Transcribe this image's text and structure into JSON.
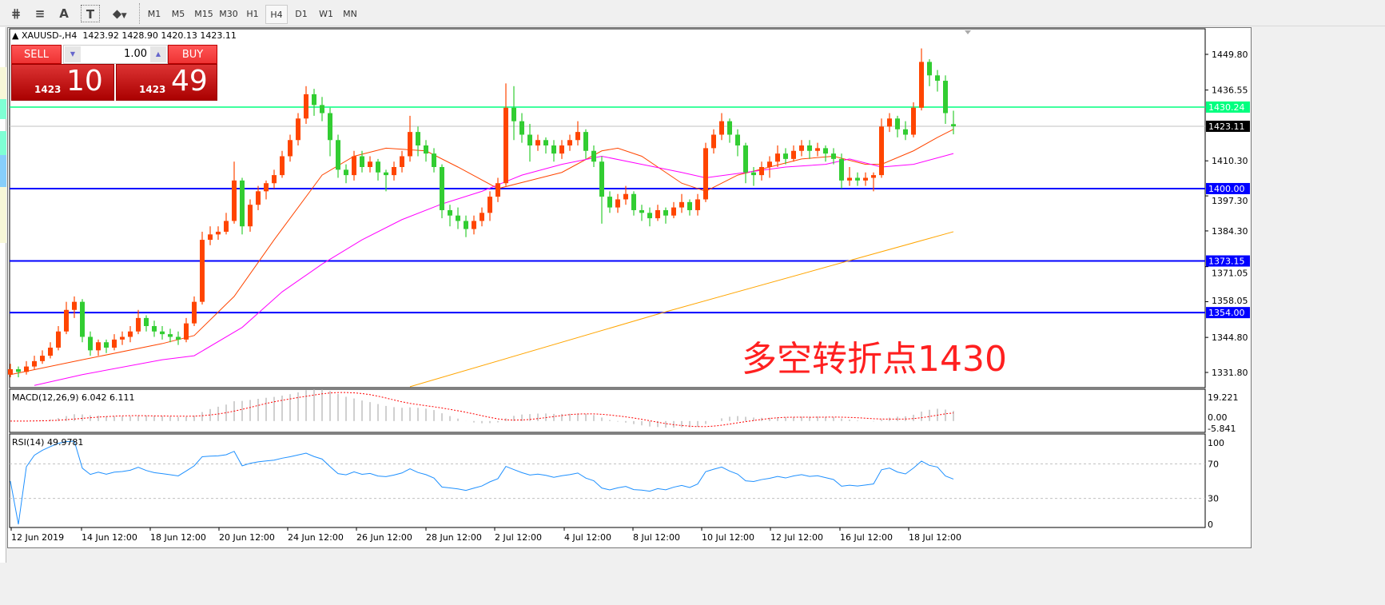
{
  "toolbar": {
    "icons": [
      "fibonacci-expansion-icon",
      "fibonacci-fan-icon",
      "text-icon",
      "text-label-icon",
      "arrows-icon"
    ],
    "icon_glyphs": [
      "⋕",
      "≡",
      "A",
      "T",
      "⬥"
    ],
    "timeframes": [
      "M1",
      "M5",
      "M15",
      "M30",
      "H1",
      "H4",
      "D1",
      "W1",
      "MN"
    ],
    "active_timeframe": "H4"
  },
  "chart_header": {
    "symbol": "XAUUSD-,H4",
    "open": "1423.92",
    "high": "1428.90",
    "low": "1420.13",
    "close": "1423.11"
  },
  "trade_panel": {
    "sell_label": "SELL",
    "buy_label": "BUY",
    "lot": "1.00",
    "bid_prefix": "1423",
    "bid_big": "10",
    "ask_prefix": "1423",
    "ask_big": "49"
  },
  "annotation": "多空转折点1430",
  "colors": {
    "bull": "#ff4500",
    "bear": "#32cd32",
    "ma_fast": "#ff4500",
    "ma_mid": "#ff00ff",
    "ma_slow": "#ffa500",
    "support": "#0000ff",
    "pivot": "#00ff7f",
    "macd_hist": "#c0c0c0",
    "macd_signal": "#ff0000",
    "rsi": "#1e90ff"
  },
  "chart_data": [
    {
      "type": "candlestick",
      "title": "XAUUSD-,H4",
      "timeframe": "H4",
      "ylim": [
        1329,
        1456
      ],
      "price_ticks": [
        "1449.80",
        "1436.55",
        "1410.30",
        "1397.30",
        "1384.30",
        "1371.05",
        "1358.05",
        "1344.80",
        "1331.80"
      ],
      "x_ticks": [
        "12 Jun 2019",
        "14 Jun 12:00",
        "18 Jun 12:00",
        "20 Jun 12:00",
        "24 Jun 12:00",
        "26 Jun 12:00",
        "28 Jun 12:00",
        "2 Jul 12:00",
        "4 Jul 12:00",
        "8 Jul 12:00",
        "10 Jul 12:00",
        "12 Jul 12:00",
        "16 Jul 12:00",
        "18 Jul 12:00"
      ],
      "ohlc": [
        [
          1331,
          1335,
          1330,
          1333
        ],
        [
          1333,
          1334,
          1330,
          1332
        ],
        [
          1332,
          1336,
          1331,
          1334
        ],
        [
          1334,
          1338,
          1333,
          1336
        ],
        [
          1336,
          1340,
          1335,
          1338
        ],
        [
          1338,
          1343,
          1337,
          1341
        ],
        [
          1341,
          1349,
          1340,
          1347
        ],
        [
          1347,
          1358,
          1346,
          1355
        ],
        [
          1355,
          1360,
          1352,
          1358
        ],
        [
          1358,
          1359,
          1343,
          1345
        ],
        [
          1345,
          1347,
          1338,
          1340
        ],
        [
          1340,
          1344,
          1338,
          1343
        ],
        [
          1343,
          1344,
          1339,
          1341
        ],
        [
          1341,
          1346,
          1340,
          1344
        ],
        [
          1344,
          1347,
          1342,
          1345
        ],
        [
          1345,
          1349,
          1343,
          1347
        ],
        [
          1347,
          1355,
          1346,
          1352
        ],
        [
          1352,
          1353,
          1347,
          1349
        ],
        [
          1349,
          1351,
          1345,
          1347
        ],
        [
          1347,
          1349,
          1344,
          1346
        ],
        [
          1346,
          1348,
          1343,
          1345
        ],
        [
          1345,
          1347,
          1342,
          1344
        ],
        [
          1344,
          1352,
          1343,
          1350
        ],
        [
          1350,
          1360,
          1349,
          1358
        ],
        [
          1358,
          1384,
          1357,
          1381
        ],
        [
          1381,
          1386,
          1379,
          1383
        ],
        [
          1383,
          1386,
          1381,
          1384
        ],
        [
          1384,
          1391,
          1383,
          1388
        ],
        [
          1388,
          1410,
          1387,
          1403
        ],
        [
          1403,
          1404,
          1383,
          1386
        ],
        [
          1386,
          1396,
          1384,
          1394
        ],
        [
          1394,
          1401,
          1392,
          1399
        ],
        [
          1399,
          1403,
          1396,
          1402
        ],
        [
          1402,
          1407,
          1400,
          1405
        ],
        [
          1405,
          1414,
          1404,
          1412
        ],
        [
          1412,
          1420,
          1410,
          1418
        ],
        [
          1418,
          1428,
          1416,
          1426
        ],
        [
          1426,
          1438,
          1424,
          1435
        ],
        [
          1435,
          1437,
          1427,
          1431
        ],
        [
          1431,
          1434,
          1425,
          1428
        ],
        [
          1428,
          1430,
          1412,
          1418
        ],
        [
          1418,
          1420,
          1404,
          1407
        ],
        [
          1407,
          1409,
          1402,
          1405
        ],
        [
          1405,
          1414,
          1403,
          1412
        ],
        [
          1412,
          1414,
          1406,
          1408
        ],
        [
          1408,
          1412,
          1406,
          1410
        ],
        [
          1410,
          1411,
          1403,
          1406
        ],
        [
          1406,
          1407,
          1399,
          1405
        ],
        [
          1405,
          1410,
          1403,
          1408
        ],
        [
          1408,
          1414,
          1406,
          1412
        ],
        [
          1412,
          1427,
          1410,
          1421
        ],
        [
          1421,
          1423,
          1412,
          1416
        ],
        [
          1416,
          1418,
          1410,
          1413
        ],
        [
          1413,
          1415,
          1406,
          1408
        ],
        [
          1408,
          1409,
          1389,
          1392
        ],
        [
          1392,
          1394,
          1386,
          1390
        ],
        [
          1390,
          1393,
          1385,
          1388
        ],
        [
          1388,
          1390,
          1382,
          1385
        ],
        [
          1385,
          1390,
          1383,
          1388
        ],
        [
          1388,
          1393,
          1386,
          1391
        ],
        [
          1391,
          1399,
          1388,
          1397
        ],
        [
          1397,
          1404,
          1395,
          1402
        ],
        [
          1402,
          1439,
          1401,
          1430
        ],
        [
          1430,
          1438,
          1418,
          1425
        ],
        [
          1425,
          1428,
          1417,
          1420
        ],
        [
          1420,
          1424,
          1410,
          1416
        ],
        [
          1416,
          1420,
          1414,
          1418
        ],
        [
          1418,
          1419,
          1413,
          1416
        ],
        [
          1416,
          1418,
          1410,
          1413
        ],
        [
          1413,
          1418,
          1411,
          1416
        ],
        [
          1416,
          1420,
          1414,
          1418
        ],
        [
          1418,
          1425,
          1416,
          1421
        ],
        [
          1421,
          1422,
          1411,
          1414
        ],
        [
          1414,
          1416,
          1408,
          1410
        ],
        [
          1410,
          1412,
          1387,
          1397
        ],
        [
          1397,
          1399,
          1391,
          1393
        ],
        [
          1393,
          1398,
          1391,
          1396
        ],
        [
          1396,
          1401,
          1394,
          1398
        ],
        [
          1398,
          1399,
          1390,
          1392
        ],
        [
          1392,
          1394,
          1388,
          1391
        ],
        [
          1391,
          1393,
          1386,
          1389
        ],
        [
          1389,
          1394,
          1388,
          1392
        ],
        [
          1392,
          1393,
          1387,
          1390
        ],
        [
          1390,
          1395,
          1389,
          1393
        ],
        [
          1393,
          1398,
          1391,
          1395
        ],
        [
          1395,
          1396,
          1390,
          1392
        ],
        [
          1392,
          1398,
          1390,
          1396
        ],
        [
          1396,
          1417,
          1395,
          1415
        ],
        [
          1415,
          1422,
          1413,
          1420
        ],
        [
          1420,
          1428,
          1418,
          1425
        ],
        [
          1425,
          1426,
          1417,
          1420
        ],
        [
          1420,
          1422,
          1412,
          1416
        ],
        [
          1416,
          1417,
          1402,
          1406
        ],
        [
          1406,
          1408,
          1401,
          1405
        ],
        [
          1405,
          1410,
          1403,
          1408
        ],
        [
          1408,
          1412,
          1404,
          1410
        ],
        [
          1410,
          1416,
          1408,
          1413
        ],
        [
          1413,
          1415,
          1409,
          1411
        ],
        [
          1411,
          1416,
          1410,
          1414
        ],
        [
          1414,
          1418,
          1412,
          1416
        ],
        [
          1416,
          1418,
          1411,
          1414
        ],
        [
          1414,
          1417,
          1412,
          1415
        ],
        [
          1415,
          1416,
          1410,
          1413
        ],
        [
          1413,
          1415,
          1409,
          1411
        ],
        [
          1411,
          1413,
          1400,
          1403
        ],
        [
          1403,
          1408,
          1401,
          1404
        ],
        [
          1404,
          1406,
          1401,
          1403
        ],
        [
          1403,
          1406,
          1401,
          1404
        ],
        [
          1404,
          1406,
          1399,
          1405
        ],
        [
          1405,
          1426,
          1404,
          1423
        ],
        [
          1423,
          1428,
          1421,
          1426
        ],
        [
          1426,
          1427,
          1419,
          1422
        ],
        [
          1422,
          1425,
          1418,
          1420
        ],
        [
          1420,
          1432,
          1419,
          1430
        ],
        [
          1430,
          1452,
          1429,
          1447
        ],
        [
          1447,
          1448,
          1438,
          1442
        ],
        [
          1442,
          1444,
          1436,
          1440
        ],
        [
          1440,
          1442,
          1424,
          1428
        ],
        [
          1423.92,
          1428.9,
          1420.13,
          1423.11
        ]
      ],
      "moving_averages": [
        {
          "color": "#ff4500",
          "points": [
            [
              0,
              1331
            ],
            [
              9,
              1336.5
            ],
            [
              19,
              1342.5
            ],
            [
              23,
              1345.5
            ],
            [
              28,
              1360
            ],
            [
              33,
              1381
            ],
            [
              39,
              1405
            ],
            [
              43,
              1412
            ],
            [
              47,
              1415
            ],
            [
              52,
              1414
            ],
            [
              56,
              1408
            ],
            [
              61,
              1400
            ],
            [
              65,
              1403
            ],
            [
              69,
              1406
            ],
            [
              74,
              1414
            ],
            [
              76,
              1415
            ],
            [
              79,
              1412
            ],
            [
              84,
              1402
            ],
            [
              87,
              1399
            ],
            [
              91,
              1405
            ],
            [
              95,
              1408
            ],
            [
              99,
              1411
            ],
            [
              103,
              1412
            ],
            [
              107,
              1409
            ],
            [
              109,
              1409
            ],
            [
              113,
              1414
            ],
            [
              116,
              1419
            ],
            [
              118,
              1422
            ]
          ]
        },
        {
          "color": "#ff00ff",
          "points": [
            [
              3,
              1327
            ],
            [
              9,
              1331
            ],
            [
              19,
              1336.5
            ],
            [
              23,
              1338
            ],
            [
              29,
              1348.5
            ],
            [
              34,
              1361.7
            ],
            [
              39,
              1372
            ],
            [
              44,
              1381
            ],
            [
              49,
              1388.5
            ],
            [
              54,
              1394.3
            ],
            [
              59,
              1399
            ],
            [
              64,
              1405
            ],
            [
              69,
              1409
            ],
            [
              74,
              1412
            ],
            [
              79,
              1409
            ],
            [
              84,
              1406
            ],
            [
              87,
              1404
            ],
            [
              92,
              1406
            ],
            [
              97,
              1408
            ],
            [
              102,
              1409
            ],
            [
              105,
              1411
            ],
            [
              109,
              1408
            ],
            [
              113,
              1409
            ],
            [
              118,
              1413
            ]
          ]
        },
        {
          "color": "#ffa500",
          "points": [
            [
              50,
              1326.5
            ],
            [
              82,
              1354.3
            ],
            [
              105,
              1373.3
            ],
            [
              118,
              1384
            ]
          ]
        }
      ],
      "horizontal_lines": [
        {
          "value": "1430.24",
          "color": "#00ff7f",
          "label_bg": "#00ff7f"
        },
        {
          "value": "1400.00",
          "color": "#0000ff",
          "label_bg": "#0000ff"
        },
        {
          "value": "1373.15",
          "color": "#0000ff",
          "label_bg": "#0000ff"
        },
        {
          "value": "1354.00",
          "color": "#0000ff",
          "label_bg": "#0000ff"
        }
      ],
      "current_price": "1423.11"
    },
    {
      "type": "bar",
      "title": "MACD(12,26,9) 6.042 6.111",
      "ylim": [
        -5.841,
        19.221
      ],
      "ticks": [
        "19.221",
        "0.00",
        "-5.841"
      ]
    },
    {
      "type": "line",
      "title": "RSI(14) 49.9781",
      "ylim": [
        0,
        100
      ],
      "ticks": [
        "100",
        "70",
        "30",
        "0"
      ],
      "levels": [
        70,
        30
      ]
    }
  ]
}
